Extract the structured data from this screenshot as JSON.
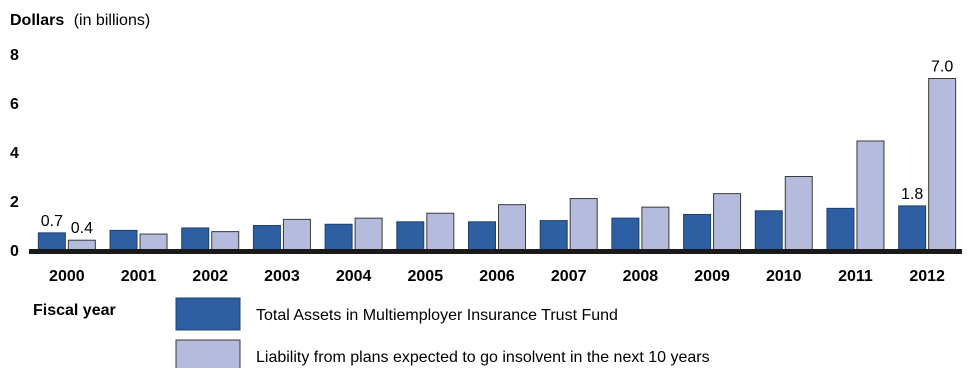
{
  "chart_data": {
    "type": "bar",
    "ylabel": "Dollars",
    "ylabel_unit": "(in billions)",
    "xlabel": "Fiscal year",
    "ylim": [
      0,
      8
    ],
    "yticks": [
      "0",
      "2",
      "4",
      "6",
      "8"
    ],
    "categories": [
      "2000",
      "2001",
      "2002",
      "2003",
      "2004",
      "2005",
      "2006",
      "2007",
      "2008",
      "2009",
      "2010",
      "2011",
      "2012"
    ],
    "series": [
      {
        "name": "Total Assets in Multiemployer Insurance Trust Fund",
        "color": "#2e5fa3",
        "values": [
          0.7,
          0.8,
          0.9,
          1.0,
          1.05,
          1.15,
          1.15,
          1.2,
          1.3,
          1.45,
          1.6,
          1.7,
          1.8
        ]
      },
      {
        "name": "Liability from plans expected to go insolvent in the next 10 years",
        "color": "#b4bbdc",
        "values": [
          0.4,
          0.65,
          0.75,
          1.25,
          1.3,
          1.5,
          1.85,
          2.1,
          1.75,
          2.3,
          3.0,
          4.45,
          7.0
        ]
      }
    ],
    "data_labels": [
      {
        "category": "2000",
        "series": 0,
        "text": "0.7"
      },
      {
        "category": "2000",
        "series": 1,
        "text": "0.4"
      },
      {
        "category": "2012",
        "series": 0,
        "text": "1.8"
      },
      {
        "category": "2012",
        "series": 1,
        "text": "7.0"
      }
    ],
    "grid": false,
    "legend_position": "bottom"
  }
}
